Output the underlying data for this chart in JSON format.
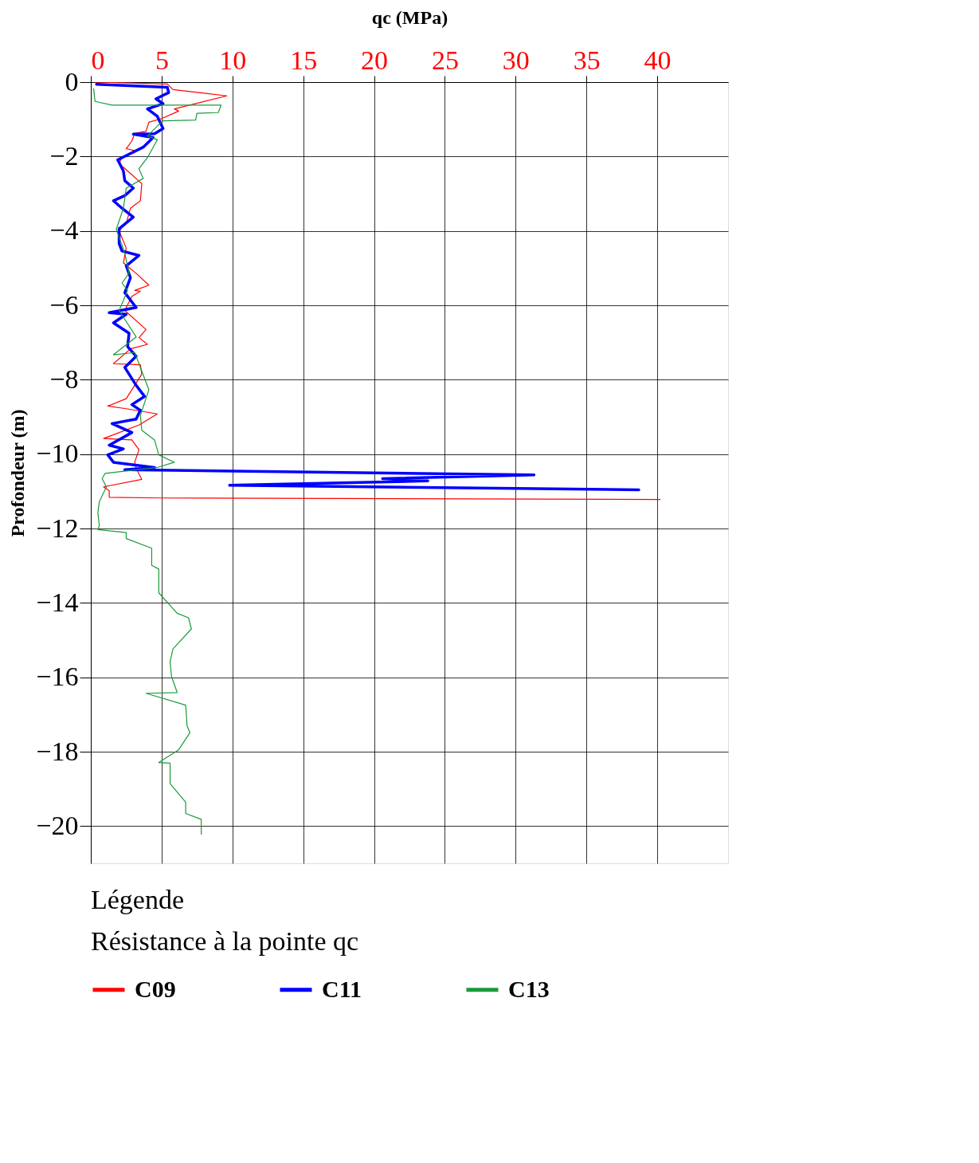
{
  "chart_data": {
    "type": "line",
    "xlabel": "qc (MPa)",
    "ylabel": "Profondeur (m)",
    "legend_title": "Légende",
    "annotations": [
      "Résistance à la pointe qc"
    ],
    "xlim": [
      0,
      45
    ],
    "xticks": [
      0,
      5,
      10,
      15,
      20,
      25,
      30,
      35,
      40
    ],
    "ylim": [
      -21,
      0
    ],
    "yticks": [
      0,
      -2,
      -4,
      -6,
      -8,
      -10,
      -12,
      -14,
      -16,
      -18,
      -20
    ],
    "grid": true,
    "legend": "bottom",
    "marker": "none",
    "line_style": "solid",
    "series": [
      {
        "name": "C09",
        "color": "#ff0000",
        "x": [
          0.2,
          5.4,
          5.8,
          9.6,
          5.9,
          6.2,
          5.0,
          4.1,
          3.9,
          3.1,
          2.9,
          2.5,
          3.2,
          2.2,
          2.0,
          2.6,
          3.6,
          3.5,
          2.8,
          2.5,
          2.0,
          2.5,
          2.3,
          3.2,
          4.1,
          3.1,
          3.5,
          2.9,
          2.4,
          3.9,
          3.4,
          4.0,
          2.8,
          1.6,
          3.5,
          3.6,
          2.5,
          1.2,
          2.5,
          4.7,
          3.4,
          0.9,
          2.9,
          3.4,
          3.1,
          3.2,
          3.6,
          0.9,
          1.3,
          1.3,
          5.0,
          40.2
        ],
        "values": [
          0,
          -0.05,
          -0.2,
          -0.37,
          -0.72,
          -0.78,
          -0.98,
          -1.08,
          -1.32,
          -1.38,
          -1.58,
          -1.79,
          -1.85,
          -2.03,
          -2.19,
          -2.39,
          -2.73,
          -3.19,
          -3.39,
          -3.8,
          -4.0,
          -4.46,
          -4.86,
          -5.14,
          -5.46,
          -5.6,
          -5.62,
          -5.76,
          -6.14,
          -6.65,
          -6.87,
          -7.05,
          -7.17,
          -7.57,
          -7.6,
          -7.85,
          -8.51,
          -8.71,
          -8.78,
          -8.92,
          -9.22,
          -9.58,
          -9.62,
          -9.88,
          -10.22,
          -10.38,
          -10.68,
          -10.88,
          -10.98,
          -11.16,
          -11.18,
          -11.22
        ]
      },
      {
        "name": "C11",
        "color": "#0000ff",
        "x": [
          0.4,
          5.4,
          5.5,
          4.6,
          5.1,
          4.0,
          4.7,
          5.1,
          4.5,
          3.0,
          4.4,
          3.7,
          1.9,
          2.3,
          2.4,
          3.0,
          2.4,
          1.6,
          2.2,
          3.0,
          2.0,
          2.0,
          2.2,
          3.4,
          2.5,
          2.8,
          2.4,
          3.2,
          1.3,
          2.5,
          1.6,
          2.7,
          2.6,
          3.2,
          2.4,
          3.2,
          3.8,
          2.9,
          3.5,
          3.2,
          1.5,
          2.9,
          1.3,
          2.3,
          1.2,
          1.6,
          4.5,
          2.4,
          31.3,
          20.6,
          23.8,
          9.8,
          38.7
        ],
        "values": [
          -0.06,
          -0.14,
          -0.28,
          -0.45,
          -0.58,
          -0.72,
          -0.92,
          -1.25,
          -1.39,
          -1.4,
          -1.49,
          -1.75,
          -2.09,
          -2.39,
          -2.65,
          -2.85,
          -3.05,
          -3.19,
          -3.39,
          -3.63,
          -3.94,
          -4.34,
          -4.54,
          -4.66,
          -4.94,
          -5.26,
          -5.66,
          -6.06,
          -6.2,
          -6.24,
          -6.47,
          -6.75,
          -7.11,
          -7.37,
          -7.67,
          -8.15,
          -8.45,
          -8.67,
          -8.82,
          -9.06,
          -9.18,
          -9.42,
          -9.76,
          -9.86,
          -10.02,
          -10.22,
          -10.36,
          -10.42,
          -10.56,
          -10.66,
          -10.72,
          -10.84,
          -10.96
        ]
      },
      {
        "name": "C13",
        "color": "#1a9a3a",
        "x": [
          0.2,
          0.3,
          1.5,
          9.2,
          9.0,
          7.5,
          7.4,
          5.1,
          4.7,
          4.0,
          4.7,
          4.0,
          3.4,
          3.7,
          2.5,
          2.3,
          1.8,
          2.4,
          2.7,
          2.2,
          2.6,
          2.0,
          3.2,
          1.6,
          3.1,
          3.7,
          4.1,
          3.5,
          3.6,
          4.5,
          4.8,
          5.9,
          4.7,
          1.0,
          0.8,
          1.1,
          0.6,
          0.5,
          0.6,
          0.5,
          2.5,
          2.5,
          4.3,
          4.3,
          4.8,
          4.8,
          6.1,
          6.9,
          7.1,
          5.8,
          5.6,
          5.7,
          6.1,
          3.9,
          6.7,
          6.8,
          7.0,
          6.2,
          4.8,
          5.6,
          5.6,
          6.7,
          6.7,
          7.8,
          7.8,
          7.8
        ],
        "values": [
          -0.18,
          -0.52,
          -0.62,
          -0.62,
          -0.82,
          -0.84,
          -1.02,
          -1.04,
          -1.18,
          -1.45,
          -1.55,
          -2.03,
          -2.33,
          -2.59,
          -2.85,
          -3.39,
          -3.96,
          -4.6,
          -5.14,
          -5.4,
          -5.6,
          -6.14,
          -6.85,
          -7.33,
          -7.27,
          -7.87,
          -8.27,
          -8.96,
          -9.36,
          -9.62,
          -10.02,
          -10.22,
          -10.36,
          -10.52,
          -10.66,
          -10.88,
          -11.28,
          -11.57,
          -11.93,
          -12.03,
          -12.11,
          -12.27,
          -12.53,
          -12.99,
          -13.09,
          -13.73,
          -14.28,
          -14.4,
          -14.7,
          -15.24,
          -15.58,
          -15.98,
          -16.41,
          -16.43,
          -16.75,
          -17.31,
          -17.49,
          -17.95,
          -18.29,
          -18.31,
          -18.86,
          -19.36,
          -19.66,
          -19.82,
          -20.02,
          -20.22
        ]
      }
    ]
  }
}
